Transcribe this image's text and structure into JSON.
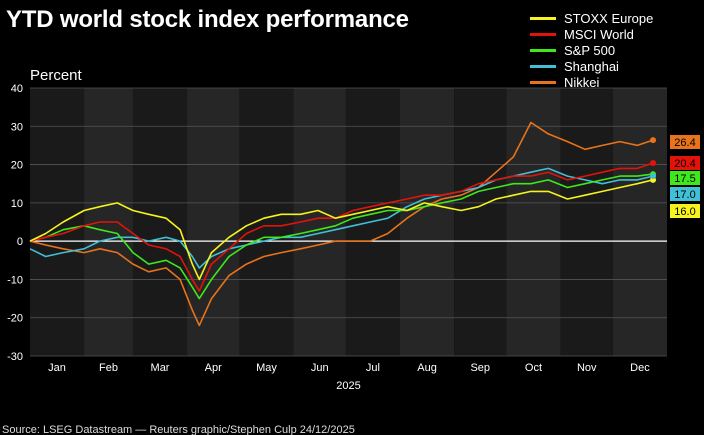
{
  "title": "YTD world stock index performance",
  "source": "Source: LSEG Datastream — Reuters graphic/Stephen Culp 24/12/2025",
  "chart_data": {
    "type": "line",
    "ylabel": "Percent",
    "xlabel": "2025",
    "ylim": [
      -30,
      40
    ],
    "yticks": [
      40,
      30,
      20,
      10,
      0,
      -10,
      -20,
      -30
    ],
    "months": [
      "Jan",
      "Feb",
      "Mar",
      "Apr",
      "May",
      "Jun",
      "Jul",
      "Aug",
      "Sep",
      "Oct",
      "Nov",
      "Dec"
    ],
    "grid": true,
    "legend": "top-right",
    "series": [
      {
        "name": "STOXX Europe",
        "color": "#f7f31c",
        "end_label": "16.0",
        "x": [
          "2025-01-01",
          "2025-01-10",
          "2025-01-20",
          "2025-02-01",
          "2025-02-10",
          "2025-02-20",
          "2025-03-01",
          "2025-03-10",
          "2025-03-20",
          "2025-03-28",
          "2025-04-04",
          "2025-04-08",
          "2025-04-15",
          "2025-04-25",
          "2025-05-05",
          "2025-05-15",
          "2025-05-25",
          "2025-06-05",
          "2025-06-15",
          "2025-06-25",
          "2025-07-05",
          "2025-07-15",
          "2025-07-25",
          "2025-08-05",
          "2025-08-15",
          "2025-08-25",
          "2025-09-05",
          "2025-09-15",
          "2025-09-25",
          "2025-10-05",
          "2025-10-15",
          "2025-10-25",
          "2025-11-05",
          "2025-11-15",
          "2025-11-25",
          "2025-12-05",
          "2025-12-15",
          "2025-12-24"
        ],
        "y": [
          0,
          2,
          5,
          8,
          9,
          10,
          8,
          7,
          6,
          3,
          -6,
          -10,
          -3,
          1,
          4,
          6,
          7,
          7,
          8,
          6,
          7,
          8,
          9,
          8,
          10,
          9,
          8,
          9,
          11,
          12,
          13,
          13,
          11,
          12,
          13,
          14,
          15,
          16.0
        ]
      },
      {
        "name": "MSCI World",
        "color": "#e3120b",
        "end_label": "20.4",
        "x": [
          "2025-01-01",
          "2025-01-10",
          "2025-01-20",
          "2025-02-01",
          "2025-02-10",
          "2025-02-20",
          "2025-03-01",
          "2025-03-10",
          "2025-03-20",
          "2025-03-28",
          "2025-04-04",
          "2025-04-08",
          "2025-04-15",
          "2025-04-25",
          "2025-05-05",
          "2025-05-15",
          "2025-05-25",
          "2025-06-05",
          "2025-06-15",
          "2025-06-25",
          "2025-07-05",
          "2025-07-15",
          "2025-07-25",
          "2025-08-05",
          "2025-08-15",
          "2025-08-25",
          "2025-09-05",
          "2025-09-15",
          "2025-09-25",
          "2025-10-05",
          "2025-10-15",
          "2025-10-25",
          "2025-11-05",
          "2025-11-15",
          "2025-11-25",
          "2025-12-05",
          "2025-12-15",
          "2025-12-24"
        ],
        "y": [
          0,
          1,
          2,
          4,
          5,
          5,
          2,
          -1,
          -2,
          -4,
          -10,
          -13,
          -6,
          -2,
          2,
          4,
          4,
          5,
          6,
          6,
          8,
          9,
          10,
          11,
          12,
          12,
          13,
          15,
          16,
          17,
          17,
          18,
          16,
          17,
          18,
          19,
          19,
          20.4
        ]
      },
      {
        "name": "S&P 500",
        "color": "#3ee81a",
        "end_label": "17.5",
        "x": [
          "2025-01-01",
          "2025-01-10",
          "2025-01-20",
          "2025-02-01",
          "2025-02-10",
          "2025-02-20",
          "2025-03-01",
          "2025-03-10",
          "2025-03-20",
          "2025-03-28",
          "2025-04-04",
          "2025-04-08",
          "2025-04-15",
          "2025-04-25",
          "2025-05-05",
          "2025-05-15",
          "2025-05-25",
          "2025-06-05",
          "2025-06-15",
          "2025-06-25",
          "2025-07-05",
          "2025-07-15",
          "2025-07-25",
          "2025-08-05",
          "2025-08-15",
          "2025-08-25",
          "2025-09-05",
          "2025-09-15",
          "2025-09-25",
          "2025-10-05",
          "2025-10-15",
          "2025-10-25",
          "2025-11-05",
          "2025-11-15",
          "2025-11-25",
          "2025-12-05",
          "2025-12-15",
          "2025-12-24"
        ],
        "y": [
          0,
          1,
          3,
          4,
          3,
          2,
          -3,
          -6,
          -5,
          -7,
          -12,
          -15,
          -10,
          -4,
          -1,
          1,
          1,
          2,
          3,
          4,
          6,
          7,
          8,
          8,
          9,
          10,
          11,
          13,
          14,
          15,
          15,
          16,
          14,
          15,
          16,
          17,
          17,
          17.5
        ]
      },
      {
        "name": "Shanghai",
        "color": "#3fc0d6",
        "end_label": "17.0",
        "x": [
          "2025-01-01",
          "2025-01-10",
          "2025-01-20",
          "2025-02-01",
          "2025-02-10",
          "2025-02-20",
          "2025-03-01",
          "2025-03-10",
          "2025-03-20",
          "2025-03-28",
          "2025-04-04",
          "2025-04-08",
          "2025-04-15",
          "2025-04-25",
          "2025-05-05",
          "2025-05-15",
          "2025-05-25",
          "2025-06-05",
          "2025-06-15",
          "2025-06-25",
          "2025-07-05",
          "2025-07-15",
          "2025-07-25",
          "2025-08-05",
          "2025-08-15",
          "2025-08-25",
          "2025-09-05",
          "2025-09-15",
          "2025-09-25",
          "2025-10-05",
          "2025-10-15",
          "2025-10-25",
          "2025-11-05",
          "2025-11-15",
          "2025-11-25",
          "2025-12-05",
          "2025-12-15",
          "2025-12-24"
        ],
        "y": [
          -2,
          -4,
          -3,
          -2,
          0,
          1,
          1,
          0,
          1,
          0,
          -4,
          -7,
          -4,
          -2,
          -1,
          0,
          1,
          1,
          2,
          3,
          4,
          5,
          6,
          9,
          11,
          12,
          13,
          14,
          16,
          17,
          18,
          19,
          17,
          16,
          15,
          16,
          16,
          17.0
        ]
      },
      {
        "name": "Nikkei",
        "color": "#e8731a",
        "end_label": "26.4",
        "x": [
          "2025-01-01",
          "2025-01-10",
          "2025-01-20",
          "2025-02-01",
          "2025-02-10",
          "2025-02-20",
          "2025-03-01",
          "2025-03-10",
          "2025-03-20",
          "2025-03-28",
          "2025-04-04",
          "2025-04-08",
          "2025-04-15",
          "2025-04-25",
          "2025-05-05",
          "2025-05-15",
          "2025-05-25",
          "2025-06-05",
          "2025-06-15",
          "2025-06-25",
          "2025-07-05",
          "2025-07-15",
          "2025-07-25",
          "2025-08-05",
          "2025-08-15",
          "2025-08-25",
          "2025-09-05",
          "2025-09-15",
          "2025-09-25",
          "2025-10-05",
          "2025-10-15",
          "2025-10-25",
          "2025-11-05",
          "2025-11-15",
          "2025-11-25",
          "2025-12-05",
          "2025-12-15",
          "2025-12-24"
        ],
        "y": [
          0,
          -1,
          -2,
          -3,
          -2,
          -3,
          -6,
          -8,
          -7,
          -10,
          -18,
          -22,
          -15,
          -9,
          -6,
          -4,
          -3,
          -2,
          -1,
          0,
          0,
          0,
          2,
          6,
          9,
          11,
          12,
          14,
          18,
          22,
          31,
          28,
          26,
          24,
          25,
          26,
          25,
          26.4
        ]
      }
    ]
  }
}
